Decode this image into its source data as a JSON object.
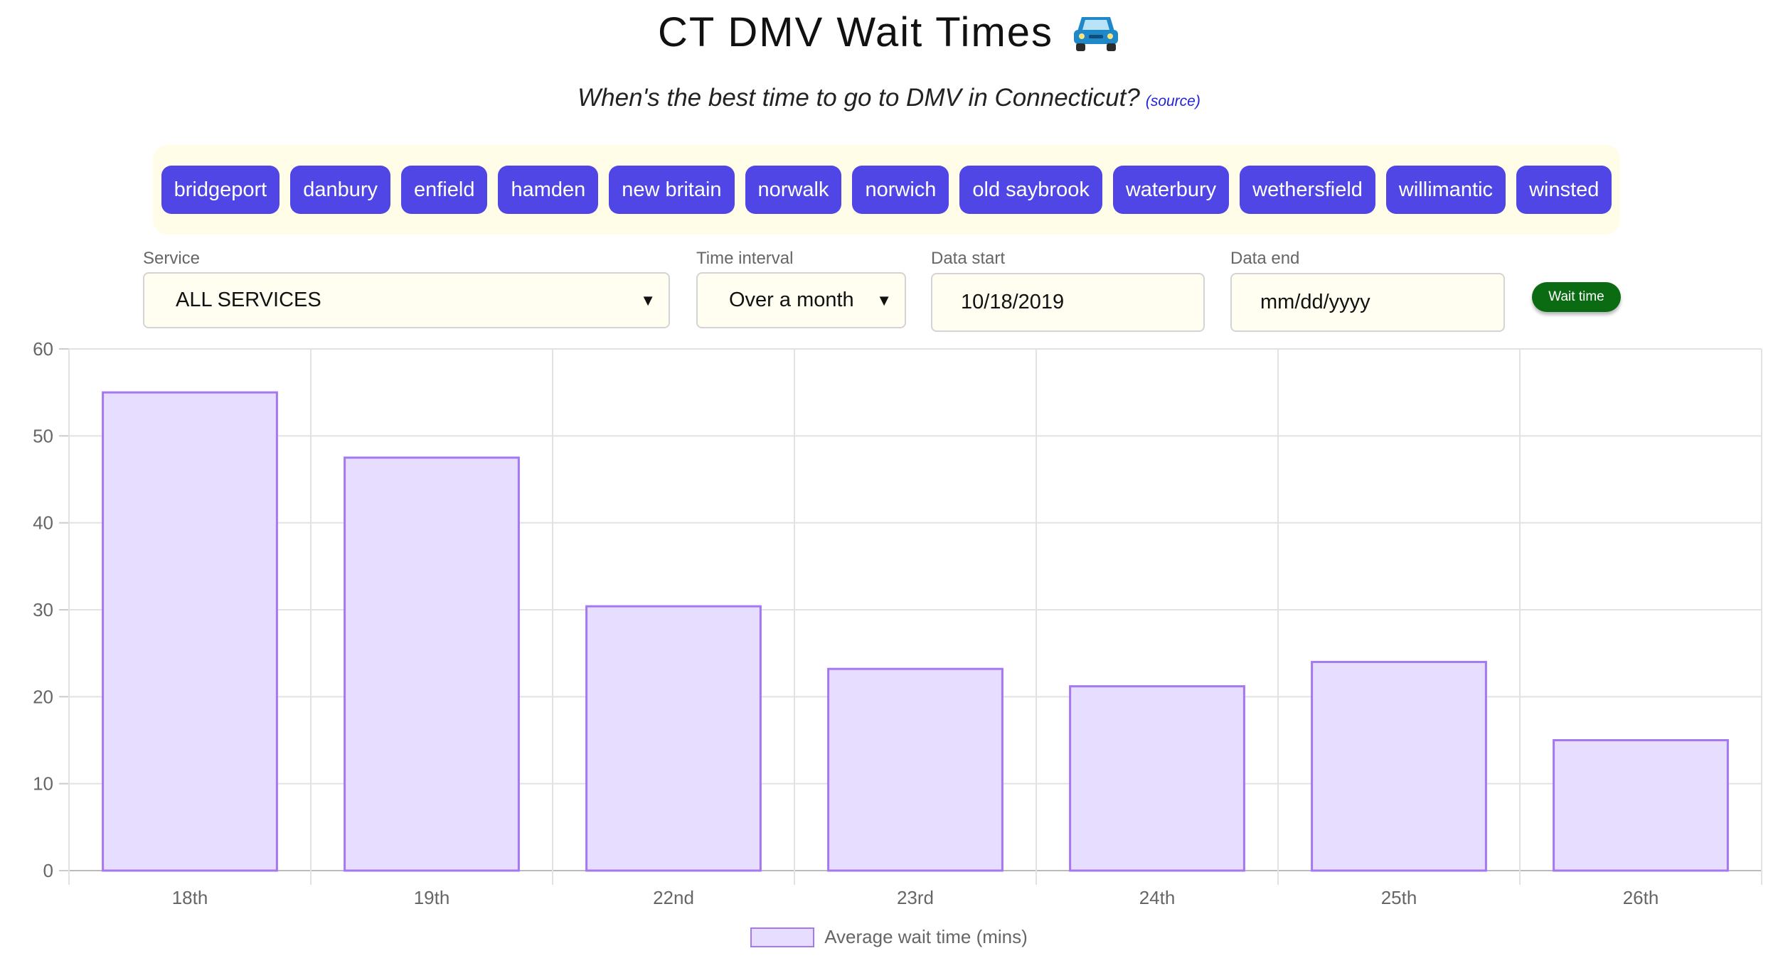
{
  "header": {
    "title": "CT DMV Wait Times",
    "subtitle": "When's the best time to go to DMV in Connecticut?",
    "source_link": "(source)",
    "title_icon": "car-icon"
  },
  "locations": [
    "bridgeport",
    "danbury",
    "enfield",
    "hamden",
    "new britain",
    "norwalk",
    "norwich",
    "old saybrook",
    "waterbury",
    "wethersfield",
    "willimantic",
    "winsted"
  ],
  "filters": {
    "service_label": "Service",
    "service_value": "ALL SERVICES",
    "interval_label": "Time interval",
    "interval_value": "Over a month",
    "start_label": "Data start",
    "start_value": "10/18/2019",
    "end_label": "Data end",
    "end_placeholder": "mm/dd/yyyy",
    "metric_button": "Wait time"
  },
  "colors": {
    "button": "#4f46e5",
    "panel": "#fffde8",
    "metric_button": "#0b6b12",
    "bar_fill": "#e7ddff",
    "bar_stroke": "#a478f0"
  },
  "chart_data": {
    "type": "bar",
    "categories": [
      "18th",
      "19th",
      "22nd",
      "23rd",
      "24th",
      "25th",
      "26th"
    ],
    "series": [
      {
        "name": "Average wait time (mins)",
        "values": [
          55,
          47.5,
          30.4,
          23.2,
          21.2,
          24,
          15
        ]
      }
    ],
    "ylim": [
      0,
      60
    ],
    "yticks": [
      0,
      10,
      20,
      30,
      40,
      50,
      60
    ],
    "grid": true,
    "legend": "bottom"
  }
}
